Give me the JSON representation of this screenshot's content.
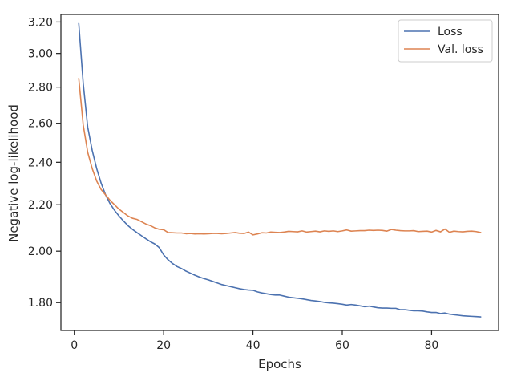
{
  "chart_data": {
    "type": "line",
    "xlabel": "Epochs",
    "ylabel": "Negative log-likelihood",
    "xlim": [
      -3,
      95
    ],
    "ylim": [
      1.7,
      3.25
    ],
    "yscale": "log",
    "x_ticks": [
      0,
      20,
      40,
      60,
      80
    ],
    "x_tick_labels": [
      "0",
      "20",
      "40",
      "60",
      "80"
    ],
    "y_ticks": [
      1.8,
      2.0,
      2.2,
      2.4,
      2.6,
      2.8,
      3.0,
      3.2
    ],
    "y_tick_labels": [
      "1.80",
      "2.00",
      "2.20",
      "2.40",
      "2.60",
      "2.80",
      "3.00",
      "3.20"
    ],
    "grid": false,
    "legend_position": "top-right",
    "x": [
      1,
      2,
      3,
      4,
      5,
      6,
      7,
      8,
      9,
      10,
      11,
      12,
      13,
      14,
      15,
      16,
      17,
      18,
      19,
      20,
      21,
      22,
      23,
      24,
      25,
      26,
      27,
      28,
      29,
      30,
      31,
      32,
      33,
      34,
      35,
      36,
      37,
      38,
      39,
      40,
      41,
      42,
      43,
      44,
      45,
      46,
      47,
      48,
      49,
      50,
      51,
      52,
      53,
      54,
      55,
      56,
      57,
      58,
      59,
      60,
      61,
      62,
      63,
      64,
      65,
      66,
      67,
      68,
      69,
      70,
      71,
      72,
      73,
      74,
      75,
      76,
      77,
      78,
      79,
      80,
      81,
      82,
      83,
      84,
      85,
      86,
      87,
      88,
      89,
      90,
      91
    ],
    "series": [
      {
        "name": "Loss",
        "color": "#4c72b0",
        "values": [
          3.19,
          2.82,
          2.58,
          2.46,
          2.37,
          2.3,
          2.245,
          2.205,
          2.175,
          2.15,
          2.128,
          2.108,
          2.092,
          2.078,
          2.065,
          2.052,
          2.04,
          2.03,
          2.015,
          1.985,
          1.965,
          1.95,
          1.938,
          1.93,
          1.92,
          1.912,
          1.904,
          1.897,
          1.891,
          1.886,
          1.88,
          1.874,
          1.868,
          1.864,
          1.86,
          1.856,
          1.852,
          1.849,
          1.847,
          1.846,
          1.84,
          1.836,
          1.833,
          1.83,
          1.828,
          1.828,
          1.824,
          1.82,
          1.818,
          1.816,
          1.814,
          1.811,
          1.808,
          1.806,
          1.804,
          1.801,
          1.799,
          1.798,
          1.796,
          1.794,
          1.791,
          1.793,
          1.791,
          1.788,
          1.785,
          1.787,
          1.784,
          1.781,
          1.78,
          1.78,
          1.779,
          1.779,
          1.774,
          1.774,
          1.772,
          1.77,
          1.77,
          1.769,
          1.766,
          1.764,
          1.764,
          1.76,
          1.762,
          1.758,
          1.756,
          1.754,
          1.752,
          1.751,
          1.75,
          1.749,
          1.748
        ]
      },
      {
        "name": "Val. loss",
        "color": "#dd8452",
        "values": [
          2.85,
          2.59,
          2.45,
          2.37,
          2.31,
          2.27,
          2.245,
          2.22,
          2.2,
          2.18,
          2.165,
          2.15,
          2.14,
          2.135,
          2.125,
          2.115,
          2.108,
          2.098,
          2.092,
          2.09,
          2.078,
          2.077,
          2.076,
          2.076,
          2.073,
          2.074,
          2.072,
          2.073,
          2.072,
          2.073,
          2.074,
          2.074,
          2.073,
          2.074,
          2.076,
          2.078,
          2.075,
          2.074,
          2.08,
          2.068,
          2.072,
          2.077,
          2.076,
          2.08,
          2.079,
          2.078,
          2.08,
          2.083,
          2.082,
          2.081,
          2.085,
          2.08,
          2.082,
          2.084,
          2.081,
          2.085,
          2.083,
          2.085,
          2.082,
          2.085,
          2.089,
          2.084,
          2.085,
          2.086,
          2.086,
          2.088,
          2.087,
          2.088,
          2.087,
          2.084,
          2.091,
          2.088,
          2.086,
          2.085,
          2.085,
          2.086,
          2.082,
          2.083,
          2.084,
          2.08,
          2.087,
          2.081,
          2.093,
          2.079,
          2.084,
          2.082,
          2.081,
          2.083,
          2.084,
          2.082,
          2.078
        ]
      }
    ]
  }
}
